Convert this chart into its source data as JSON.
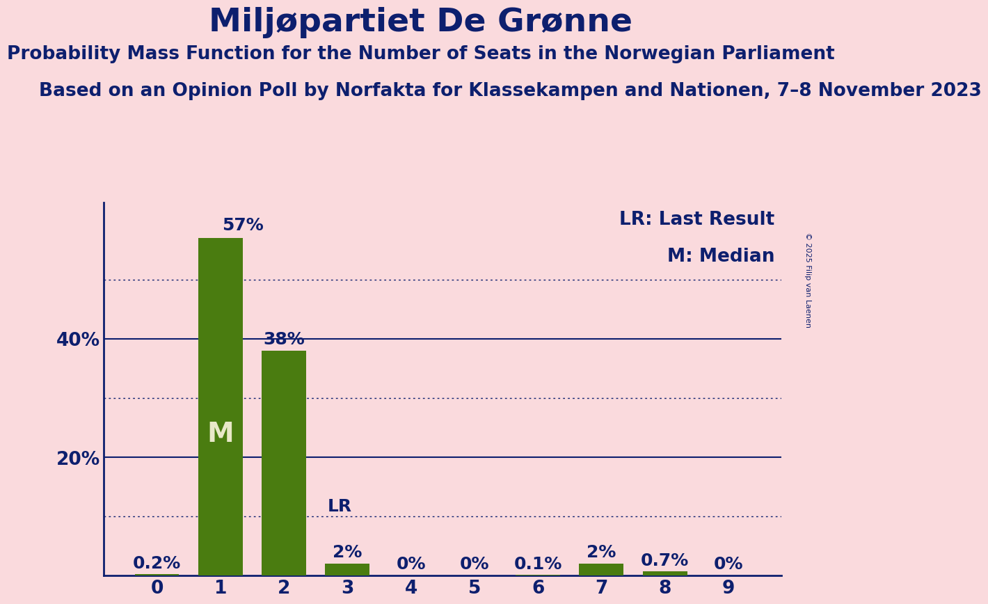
{
  "title": "Miljøpartiet De Grønne",
  "subtitle": "Probability Mass Function for the Number of Seats in the Norwegian Parliament",
  "source_line": "Based on an Opinion Poll by Norfakta for Klassekampen and Nationen, 7–8 November 2023",
  "copyright": "© 2025 Filip van Laenen",
  "categories": [
    0,
    1,
    2,
    3,
    4,
    5,
    6,
    7,
    8,
    9
  ],
  "values": [
    0.2,
    57.0,
    38.0,
    2.0,
    0.0,
    0.0,
    0.1,
    2.0,
    0.7,
    0.0
  ],
  "bar_color": "#4a7c10",
  "background_color": "#fadadd",
  "title_color": "#0d1f6e",
  "axis_color": "#0d1f6e",
  "label_color": "#0d1f6e",
  "bar_label_color_inside": "#e8e8c8",
  "median_bar": 1,
  "last_result_bar": 3,
  "solid_grid_lines": [
    20,
    40
  ],
  "dotted_grid_lines": [
    10,
    30,
    50
  ],
  "ylim": [
    0,
    63
  ],
  "yticklabels_vals": [
    20,
    40
  ],
  "legend_lr": "LR: Last Result",
  "legend_m": "M: Median",
  "title_fontsize": 34,
  "subtitle_fontsize": 19,
  "source_fontsize": 19,
  "bar_label_fontsize": 18,
  "tick_fontsize": 19,
  "legend_fontsize": 19,
  "copyright_fontsize": 8
}
